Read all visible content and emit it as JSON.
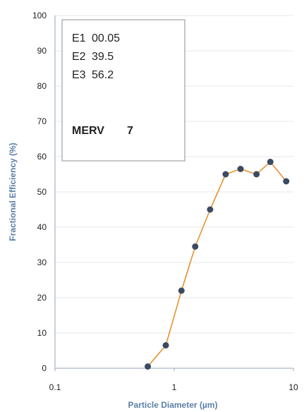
{
  "chart_data": {
    "type": "line",
    "xscale": "log",
    "xlim": [
      0.1,
      10
    ],
    "ylim": [
      0,
      100
    ],
    "xticks": [
      "0.1",
      "1",
      "10"
    ],
    "yticks": [
      "0",
      "10",
      "20",
      "30",
      "40",
      "50",
      "60",
      "70",
      "80",
      "90",
      "100"
    ],
    "xlabel": "Particle Diameter (µm)",
    "ylabel": "Fractional Efficiency (%)",
    "grid": true,
    "line_color": "#e8912f",
    "marker_color": "#3a4a63",
    "x": [
      0.6,
      0.85,
      1.15,
      1.5,
      2.0,
      2.7,
      3.6,
      4.9,
      6.4,
      8.7
    ],
    "y": [
      0.5,
      6.5,
      22,
      34.5,
      45,
      55,
      56.5,
      55,
      58.5,
      53
    ],
    "annotation": {
      "rows": [
        {
          "label": "E1",
          "value": "00.05"
        },
        {
          "label": "E2",
          "value": "39.5"
        },
        {
          "label": "E3",
          "value": "56.2"
        }
      ],
      "merv_label": "MERV",
      "merv_value": "7"
    }
  }
}
